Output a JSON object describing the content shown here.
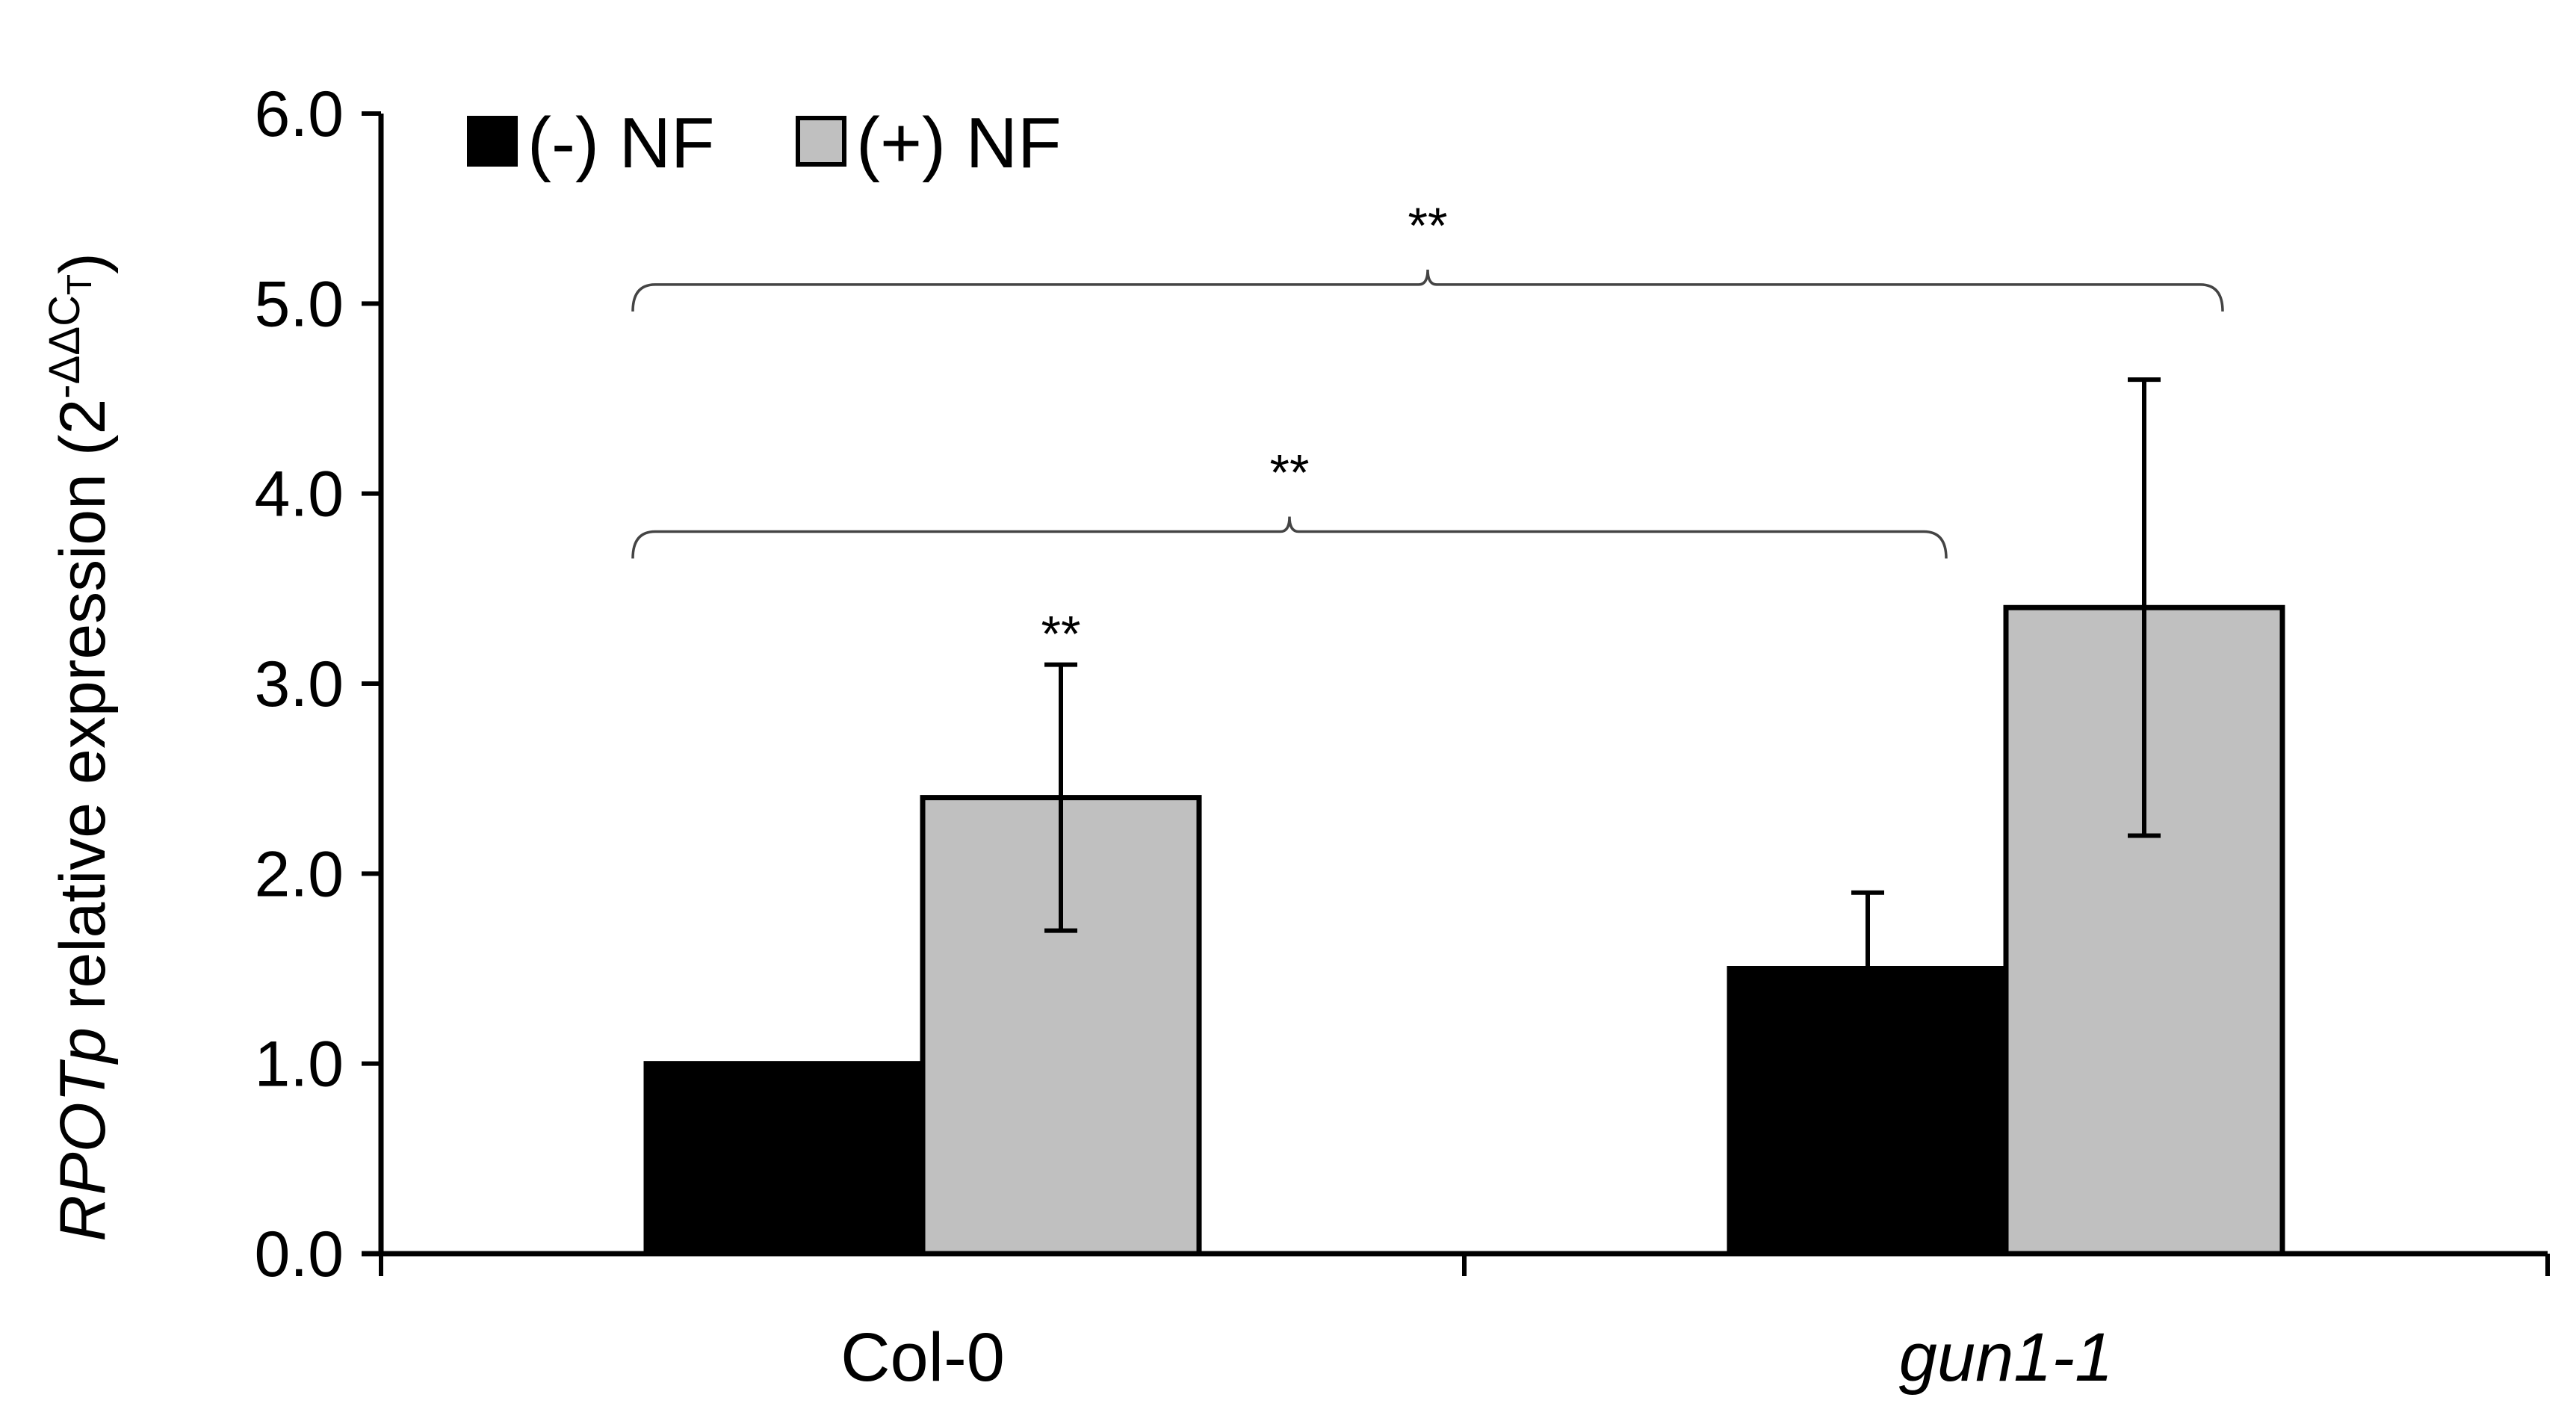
{
  "chart_data": {
    "type": "bar",
    "categories": [
      "Col-0",
      "gun1-1"
    ],
    "categories_italic": [
      false,
      true
    ],
    "series": [
      {
        "name": "(-) NF",
        "values": [
          1.0,
          1.5
        ],
        "errors": [
          0,
          0.4
        ],
        "color": "#000000"
      },
      {
        "name": "(+) NF",
        "values": [
          2.4,
          3.4
        ],
        "errors": [
          0.7,
          1.2
        ],
        "color": "#c0c0c0"
      }
    ],
    "ylim": [
      0,
      6
    ],
    "yticks": [
      "0.0",
      "1.0",
      "2.0",
      "3.0",
      "4.0",
      "5.0",
      "6.0"
    ],
    "ylabel": {
      "gene": "RPOTp",
      "text": " relative expression (2",
      "superscript": "-ΔΔC",
      "subscript": "T",
      "close": ")"
    },
    "legend_position": "top-left",
    "grid": false,
    "annotations": [
      {
        "text": "**",
        "type": "bar",
        "category": 0,
        "series": 1,
        "at_value": 3.1
      },
      {
        "text": "**",
        "type": "bracket",
        "from": [
          0,
          0
        ],
        "to": [
          1,
          0
        ],
        "at_value": 3.8
      },
      {
        "text": "**",
        "type": "bracket",
        "from": [
          0,
          0
        ],
        "to": [
          1,
          1
        ],
        "at_value": 5.1
      }
    ]
  }
}
